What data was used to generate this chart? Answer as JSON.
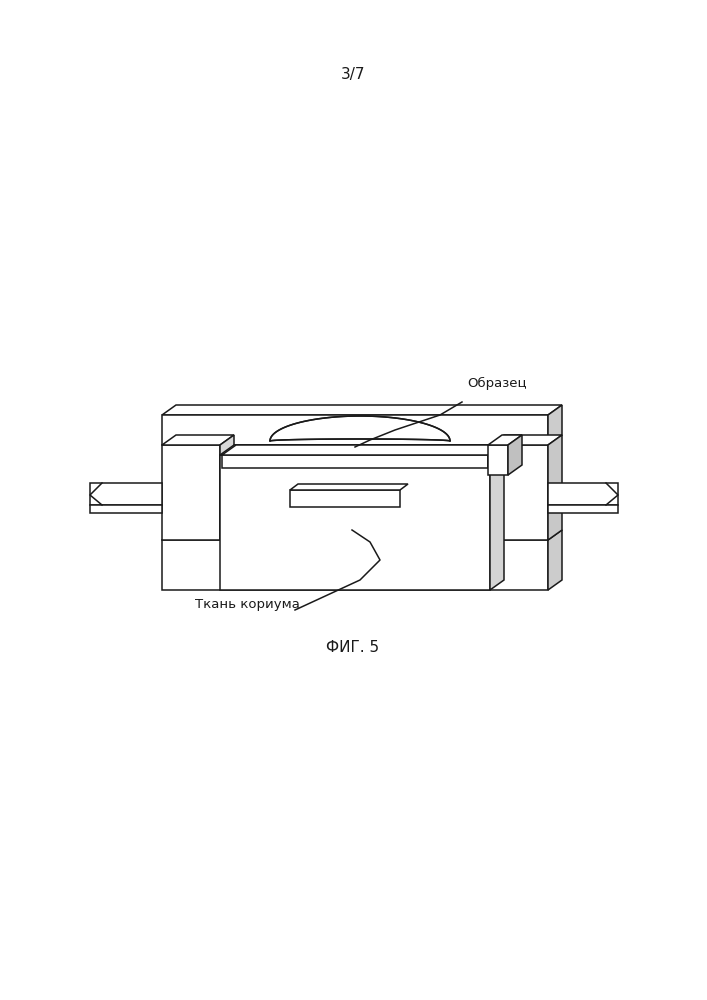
{
  "title_page": "3/7",
  "fig_label": "ФИГ. 5",
  "label_obrazec": "Образец",
  "label_tkan": "Ткань кориума",
  "bg_color": "#ffffff",
  "line_color": "#1a1a1a",
  "line_width": 1.1,
  "title_fontsize": 11,
  "label_fontsize": 9.5,
  "fig_label_fontsize": 11
}
